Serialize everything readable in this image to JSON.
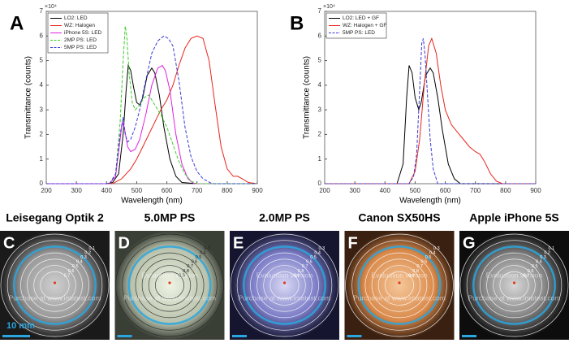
{
  "chart_data": [
    {
      "type": "line",
      "label": "A",
      "xlabel": "Wavelength (nm)",
      "ylabel": "Transmittance (counts)",
      "y_multiplier": "×10⁴",
      "xlim": [
        200,
        900
      ],
      "xticks": [
        200,
        300,
        400,
        500,
        600,
        700,
        800,
        900
      ],
      "ylim": [
        0,
        7
      ],
      "yticks": [
        0,
        1,
        2,
        3,
        4,
        5,
        6,
        7
      ],
      "legend": "upper-left",
      "series": [
        {
          "name": "LO2: LED",
          "color": "#000000",
          "dashed": false,
          "x": [
            200,
            400,
            420,
            440,
            455,
            465,
            472,
            480,
            490,
            500,
            510,
            520,
            535,
            550,
            560,
            575,
            590,
            610,
            630,
            650,
            700,
            900
          ],
          "values": [
            0,
            0,
            0.05,
            0.4,
            2.0,
            3.8,
            4.8,
            4.6,
            3.9,
            3.3,
            3.2,
            3.5,
            4.4,
            4.7,
            4.5,
            3.6,
            2.3,
            1.0,
            0.3,
            0.05,
            0,
            0
          ]
        },
        {
          "name": "WZ: Halogen",
          "color": "#e8241c",
          "dashed": false,
          "x": [
            200,
            420,
            450,
            480,
            500,
            520,
            540,
            560,
            580,
            600,
            620,
            640,
            660,
            680,
            700,
            720,
            740,
            760,
            780,
            800,
            820,
            835,
            850,
            870,
            900
          ],
          "values": [
            0,
            0,
            0.2,
            0.6,
            1.0,
            1.5,
            2.0,
            2.5,
            3.0,
            3.4,
            4.0,
            4.8,
            5.5,
            5.9,
            6.0,
            5.9,
            5.0,
            3.2,
            1.5,
            0.6,
            0.3,
            0.3,
            0.2,
            0.05,
            0
          ]
        },
        {
          "name": "iPhone 5S: LED",
          "color": "#e021e0",
          "dashed": false,
          "x": [
            200,
            410,
            430,
            445,
            452,
            460,
            470,
            480,
            495,
            510,
            530,
            550,
            570,
            585,
            595,
            610,
            630,
            650,
            670,
            690,
            900
          ],
          "values": [
            0,
            0,
            0.3,
            1.8,
            2.5,
            2.2,
            1.5,
            1.3,
            1.4,
            1.8,
            2.8,
            4.0,
            4.7,
            4.8,
            4.6,
            3.8,
            2.0,
            0.8,
            0.2,
            0,
            0
          ]
        },
        {
          "name": "2MP PS: LED",
          "color": "#3ccf2a",
          "dashed": true,
          "x": [
            200,
            410,
            430,
            445,
            455,
            462,
            467,
            475,
            485,
            495,
            510,
            525,
            540,
            560,
            580,
            600,
            620,
            640,
            660,
            680,
            700,
            900
          ],
          "values": [
            0,
            0,
            0.4,
            2.5,
            5.0,
            6.4,
            6.0,
            4.5,
            3.3,
            3.0,
            3.2,
            3.5,
            3.6,
            3.2,
            2.8,
            2.3,
            1.6,
            0.9,
            0.4,
            0.1,
            0,
            0
          ]
        },
        {
          "name": "5MP PS: LED",
          "color": "#3b3bd6",
          "dashed": true,
          "x": [
            200,
            410,
            430,
            445,
            455,
            462,
            470,
            480,
            495,
            510,
            530,
            550,
            570,
            590,
            605,
            620,
            640,
            660,
            680,
            700,
            720,
            750,
            900
          ],
          "values": [
            0,
            0,
            0.4,
            2.0,
            2.7,
            2.0,
            1.7,
            1.8,
            2.3,
            3.0,
            4.2,
            5.3,
            5.8,
            6.0,
            5.9,
            5.6,
            4.2,
            2.3,
            1.1,
            0.5,
            0.2,
            0,
            0
          ]
        }
      ]
    },
    {
      "type": "line",
      "label": "B",
      "xlabel": "Wavelength (nm)",
      "ylabel": "Transmittance (counts)",
      "y_multiplier": "×10⁴",
      "xlim": [
        200,
        900
      ],
      "xticks": [
        200,
        300,
        400,
        500,
        600,
        700,
        800,
        900
      ],
      "ylim": [
        0,
        7
      ],
      "yticks": [
        0,
        1,
        2,
        3,
        4,
        5,
        6,
        7
      ],
      "legend": "upper-left",
      "series": [
        {
          "name": "LO2: LED + GF",
          "color": "#000000",
          "dashed": false,
          "x": [
            200,
            440,
            460,
            472,
            480,
            490,
            500,
            512,
            520,
            535,
            550,
            560,
            575,
            590,
            610,
            630,
            650,
            900
          ],
          "values": [
            0,
            0,
            0.8,
            3.5,
            4.8,
            4.5,
            3.5,
            3.0,
            3.3,
            4.4,
            4.7,
            4.5,
            3.5,
            2.2,
            0.8,
            0.2,
            0,
            0
          ]
        },
        {
          "name": "WZ: Halogen + GF",
          "color": "#e8241c",
          "dashed": false,
          "x": [
            200,
            480,
            500,
            515,
            530,
            545,
            555,
            570,
            585,
            600,
            620,
            640,
            660,
            680,
            700,
            715,
            730,
            750,
            770,
            790,
            900
          ],
          "values": [
            0,
            0,
            0.5,
            1.8,
            4.0,
            5.6,
            5.9,
            5.3,
            4.0,
            3.0,
            2.4,
            2.1,
            1.8,
            1.5,
            1.3,
            1.2,
            0.9,
            0.4,
            0.1,
            0,
            0
          ]
        },
        {
          "name": "5MP PS: LED",
          "color": "#3b3bd6",
          "dashed": true,
          "x": [
            200,
            480,
            495,
            505,
            515,
            522,
            527,
            533,
            540,
            550,
            560,
            575,
            900
          ],
          "values": [
            0,
            0,
            0.3,
            1.2,
            3.8,
            5.7,
            5.9,
            5.2,
            3.8,
            1.8,
            0.6,
            0,
            0
          ]
        }
      ]
    }
  ],
  "panels": [
    {
      "letter": "C",
      "title": "Leisegang Optik 2",
      "contours": [
        0.1,
        0.2,
        0.3,
        0.4,
        0.5,
        0.6,
        0.7
      ],
      "scale_bar": "10 mm",
      "watermark": [
        "Purchase at www.imatest.com"
      ]
    },
    {
      "letter": "D",
      "title": "5.0MP PS",
      "contours": [
        0.3,
        0.4,
        0.5,
        0.6,
        0.7,
        0.8,
        0.9
      ],
      "watermark": [
        "Evaluation version",
        "Purchase at www.imatest.com"
      ]
    },
    {
      "letter": "E",
      "title": "2.0MP PS",
      "contours": [
        0.3,
        0.4,
        0.5,
        0.6,
        0.7,
        0.8,
        0.9
      ],
      "watermark": [
        "Evaluation version",
        "Purchase at www.imatest.com"
      ]
    },
    {
      "letter": "F",
      "title": "Canon SX50HS",
      "contours": [
        0.3,
        0.4,
        0.5,
        0.6,
        0.7,
        0.8,
        0.9
      ],
      "watermark": [
        "Evaluation version",
        "Purchase at www.imatest.com"
      ]
    },
    {
      "letter": "G",
      "title": "Apple iPhone 5S",
      "contours": [
        0.1,
        0.2,
        0.3,
        0.4,
        0.5,
        0.6,
        0.7
      ],
      "watermark": [
        "Evaluation version",
        "Purchase at www.imatest.com"
      ]
    }
  ]
}
